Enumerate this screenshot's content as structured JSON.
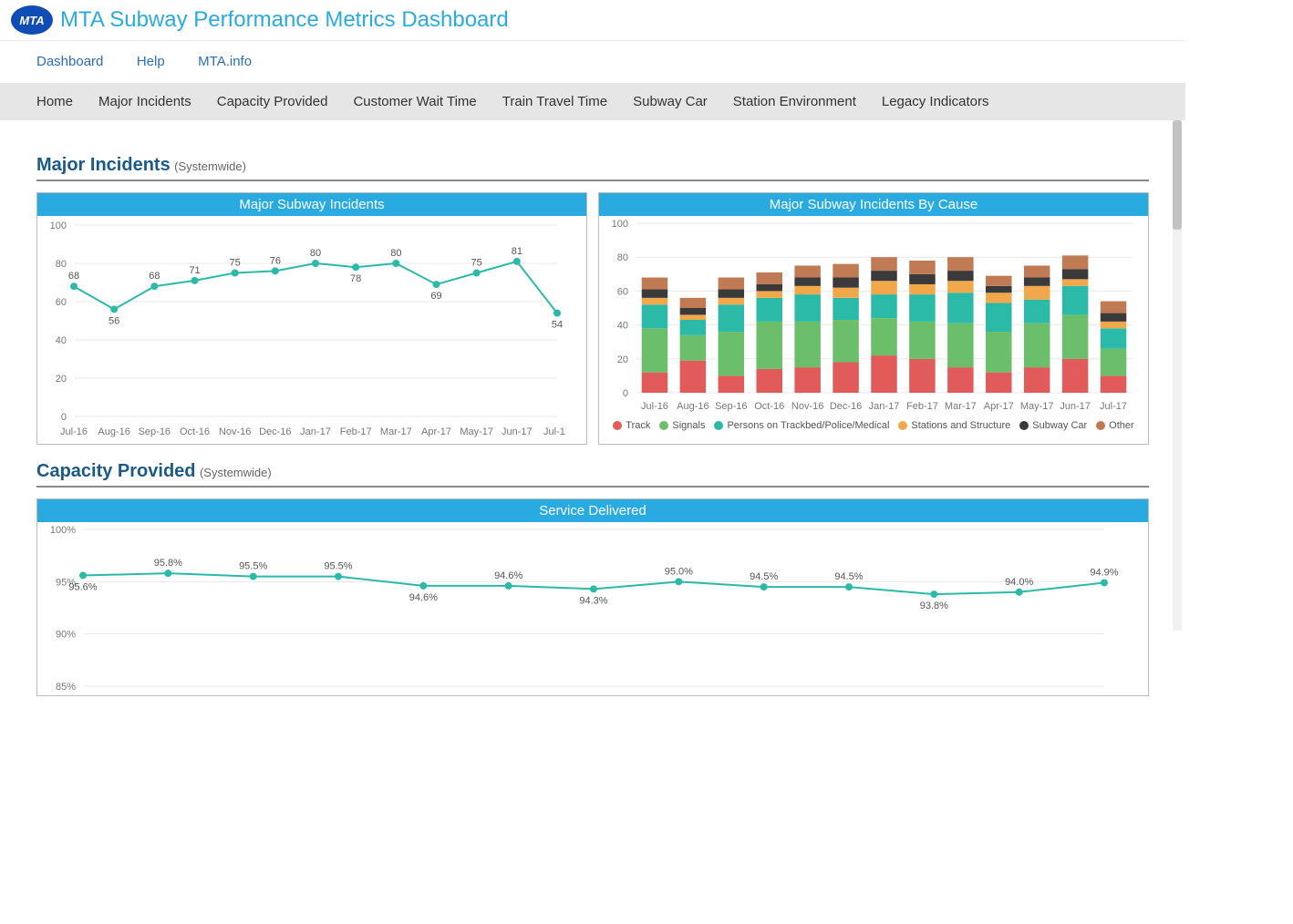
{
  "header": {
    "logo_text": "MTA",
    "title": "MTA Subway Performance Metrics Dashboard"
  },
  "topnav": {
    "items": [
      "Dashboard",
      "Help",
      "MTA.info"
    ]
  },
  "tabs": {
    "items": [
      "Home",
      "Major Incidents",
      "Capacity Provided",
      "Customer Wait Time",
      "Train Travel Time",
      "Subway Car",
      "Station Environment",
      "Legacy Indicators"
    ]
  },
  "sections": {
    "major_incidents": {
      "title": "Major Incidents",
      "sub": "(Systemwide)"
    },
    "capacity": {
      "title": "Capacity Provided",
      "sub": "(Systemwide)"
    }
  },
  "months": [
    "Jul-16",
    "Aug-16",
    "Sep-16",
    "Oct-16",
    "Nov-16",
    "Dec-16",
    "Jan-17",
    "Feb-17",
    "Mar-17",
    "Apr-17",
    "May-17",
    "Jun-17",
    "Jul-17"
  ],
  "incidents_line": {
    "title": "Major Subway Incidents",
    "type": "line",
    "values": [
      68,
      56,
      68,
      71,
      75,
      76,
      80,
      78,
      80,
      69,
      75,
      81,
      54
    ],
    "ylim": [
      0,
      100
    ],
    "ytick_step": 20,
    "line_color": "#2bb9a8",
    "marker_fill": "#2bb9a8",
    "grid_color": "#e8e8e8",
    "background": "#ffffff",
    "label_fontsize": 11
  },
  "incidents_stacked": {
    "title": "Major Subway Incidents By Cause",
    "type": "stacked-bar",
    "ylim": [
      0,
      100
    ],
    "ytick_step": 20,
    "grid_color": "#e8e8e8",
    "series": [
      {
        "name": "Track",
        "color": "#e15b5b"
      },
      {
        "name": "Signals",
        "color": "#6bbf6b"
      },
      {
        "name": "Persons on Trackbed/Police/Medical",
        "color": "#2bb9a8"
      },
      {
        "name": "Stations and Structure",
        "color": "#f0a84a"
      },
      {
        "name": "Subway Car",
        "color": "#3a3a3a"
      },
      {
        "name": "Other",
        "color": "#c07a54"
      }
    ],
    "stacks": [
      [
        12,
        26,
        14,
        4,
        5,
        7
      ],
      [
        19,
        15,
        9,
        3,
        4,
        6
      ],
      [
        10,
        26,
        16,
        4,
        5,
        7
      ],
      [
        14,
        28,
        14,
        4,
        4,
        7
      ],
      [
        15,
        27,
        16,
        5,
        5,
        7
      ],
      [
        18,
        25,
        13,
        6,
        6,
        8
      ],
      [
        22,
        22,
        14,
        8,
        6,
        8
      ],
      [
        20,
        22,
        16,
        6,
        6,
        8
      ],
      [
        15,
        26,
        18,
        7,
        6,
        8
      ],
      [
        12,
        24,
        17,
        6,
        4,
        6
      ],
      [
        15,
        26,
        14,
        8,
        5,
        7
      ],
      [
        20,
        26,
        17,
        4,
        6,
        8
      ],
      [
        10,
        16,
        12,
        4,
        5,
        7
      ]
    ]
  },
  "service_delivered": {
    "title": "Service Delivered",
    "type": "line",
    "values": [
      95.6,
      95.8,
      95.5,
      95.5,
      94.6,
      94.6,
      94.3,
      95.0,
      94.5,
      94.5,
      93.8,
      94.0,
      94.9
    ],
    "labels": [
      "95.6%",
      "95.8%",
      "95.5%",
      "95.5%",
      "94.6%",
      "94.6%",
      "94.3%",
      "95.0%",
      "94.5%",
      "94.5%",
      "93.8%",
      "94.0%",
      "94.9%"
    ],
    "label_pos": [
      "below",
      "above",
      "above",
      "above",
      "below",
      "above",
      "below",
      "above",
      "above",
      "above",
      "below",
      "above",
      "above"
    ],
    "ylim": [
      85,
      100
    ],
    "ytick_step": 5,
    "line_color": "#2bb9a8",
    "marker_fill": "#2bb9a8",
    "grid_color": "#e8e8e8",
    "background": "#ffffff",
    "label_fontsize": 11,
    "y_suffix": "%"
  },
  "colors": {
    "title_bar": "#29abe2",
    "link": "#2a6ebb",
    "section_heading": "#1a5a8a",
    "tab_bg": "#e6e6e6"
  }
}
